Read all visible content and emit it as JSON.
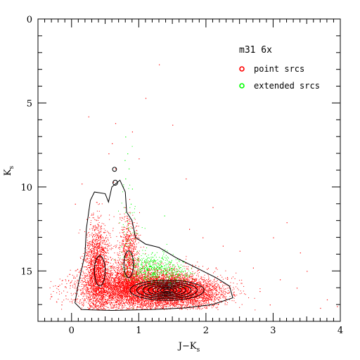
{
  "chart_data": {
    "type": "scatter",
    "xlabel": "J−K",
    "xlabel_sub": "s",
    "ylabel": "K",
    "ylabel_sub": "s",
    "xlim": [
      -0.5,
      4
    ],
    "ylim": [
      18,
      0
    ],
    "y_inverted": true,
    "grid": false,
    "x_ticks": [
      0,
      1,
      2,
      3,
      4
    ],
    "y_ticks": [
      0,
      5,
      10,
      15
    ],
    "x_minor_step": 0.1,
    "y_minor_step": 1,
    "legend": {
      "title": "m31 6x",
      "placement": "top-right",
      "entries": [
        {
          "label": "point srcs",
          "color": "#ff0000"
        },
        {
          "label": "extended srcs",
          "color": "#00ff00"
        }
      ]
    },
    "series": [
      {
        "name": "point srcs",
        "color": "#ff0000",
        "clusters": [
          {
            "cx": 1.35,
            "cy": 16.1,
            "sx": 0.38,
            "sy": 0.55,
            "n": 4200
          },
          {
            "cx": 0.75,
            "cy": 16.0,
            "sx": 0.35,
            "sy": 0.6,
            "n": 2600
          },
          {
            "cx": 0.38,
            "cy": 14.8,
            "sx": 0.09,
            "sy": 1.3,
            "n": 1700
          },
          {
            "cx": 0.85,
            "cy": 14.2,
            "sx": 0.08,
            "sy": 1.2,
            "n": 900
          },
          {
            "cx": 1.75,
            "cy": 16.3,
            "sx": 0.3,
            "sy": 0.4,
            "n": 1300
          }
        ],
        "outliers": [
          [
            0.25,
            5.8
          ],
          [
            0.65,
            6.2
          ],
          [
            1.1,
            4.7
          ],
          [
            1.3,
            2.7
          ],
          [
            1.5,
            6.3
          ],
          [
            0.9,
            6.7
          ],
          [
            0.55,
            8.0
          ],
          [
            0.6,
            7.4
          ],
          [
            0.15,
            9.8
          ],
          [
            0.05,
            11.0
          ],
          [
            2.7,
            14.8
          ],
          [
            3.1,
            15.5
          ],
          [
            3.5,
            15.0
          ],
          [
            3.35,
            16.0
          ],
          [
            3.8,
            16.7
          ],
          [
            3.7,
            17.2
          ],
          [
            2.95,
            17.0
          ],
          [
            0.0,
            16.8
          ],
          [
            -0.15,
            17.0
          ],
          [
            -0.3,
            16.5
          ],
          [
            2.5,
            13.8
          ],
          [
            1.95,
            13.0
          ],
          [
            1.75,
            12.5
          ],
          [
            3.4,
            13.9
          ],
          [
            -0.2,
            15.9
          ],
          [
            0.65,
            8.9
          ],
          [
            0.62,
            9.7
          ],
          [
            1.0,
            8.3
          ],
          [
            2.25,
            13.5
          ],
          [
            2.8,
            16.2
          ],
          [
            3.95,
            17.1
          ],
          [
            3.0,
            13.0
          ],
          [
            1.7,
            9.5
          ],
          [
            2.1,
            11.2
          ],
          [
            3.2,
            12.1
          ]
        ]
      },
      {
        "name": "extended srcs",
        "color": "#00ff00",
        "clusters": [
          {
            "cx": 1.2,
            "cy": 14.8,
            "sx": 0.18,
            "sy": 0.45,
            "n": 450
          },
          {
            "cx": 0.85,
            "cy": 12.8,
            "sx": 0.1,
            "sy": 1.8,
            "n": 70
          },
          {
            "cx": 1.55,
            "cy": 15.2,
            "sx": 0.12,
            "sy": 0.35,
            "n": 120
          }
        ],
        "outliers": [
          [
            0.8,
            7.0
          ],
          [
            0.83,
            8.0
          ],
          [
            0.79,
            8.4
          ],
          [
            0.85,
            8.9
          ],
          [
            1.38,
            11.7
          ],
          [
            0.8,
            9.5
          ],
          [
            0.9,
            10.1
          ],
          [
            0.88,
            11.0
          ]
        ]
      }
    ],
    "contours": {
      "color": "#000000",
      "center": [
        1.42,
        16.15
      ],
      "levels": [
        [
          0.55,
          0.6
        ],
        [
          0.45,
          0.5
        ],
        [
          0.36,
          0.41
        ],
        [
          0.28,
          0.33
        ],
        [
          0.21,
          0.26
        ],
        [
          0.15,
          0.19
        ],
        [
          0.1,
          0.13
        ],
        [
          0.05,
          0.07
        ]
      ]
    }
  }
}
